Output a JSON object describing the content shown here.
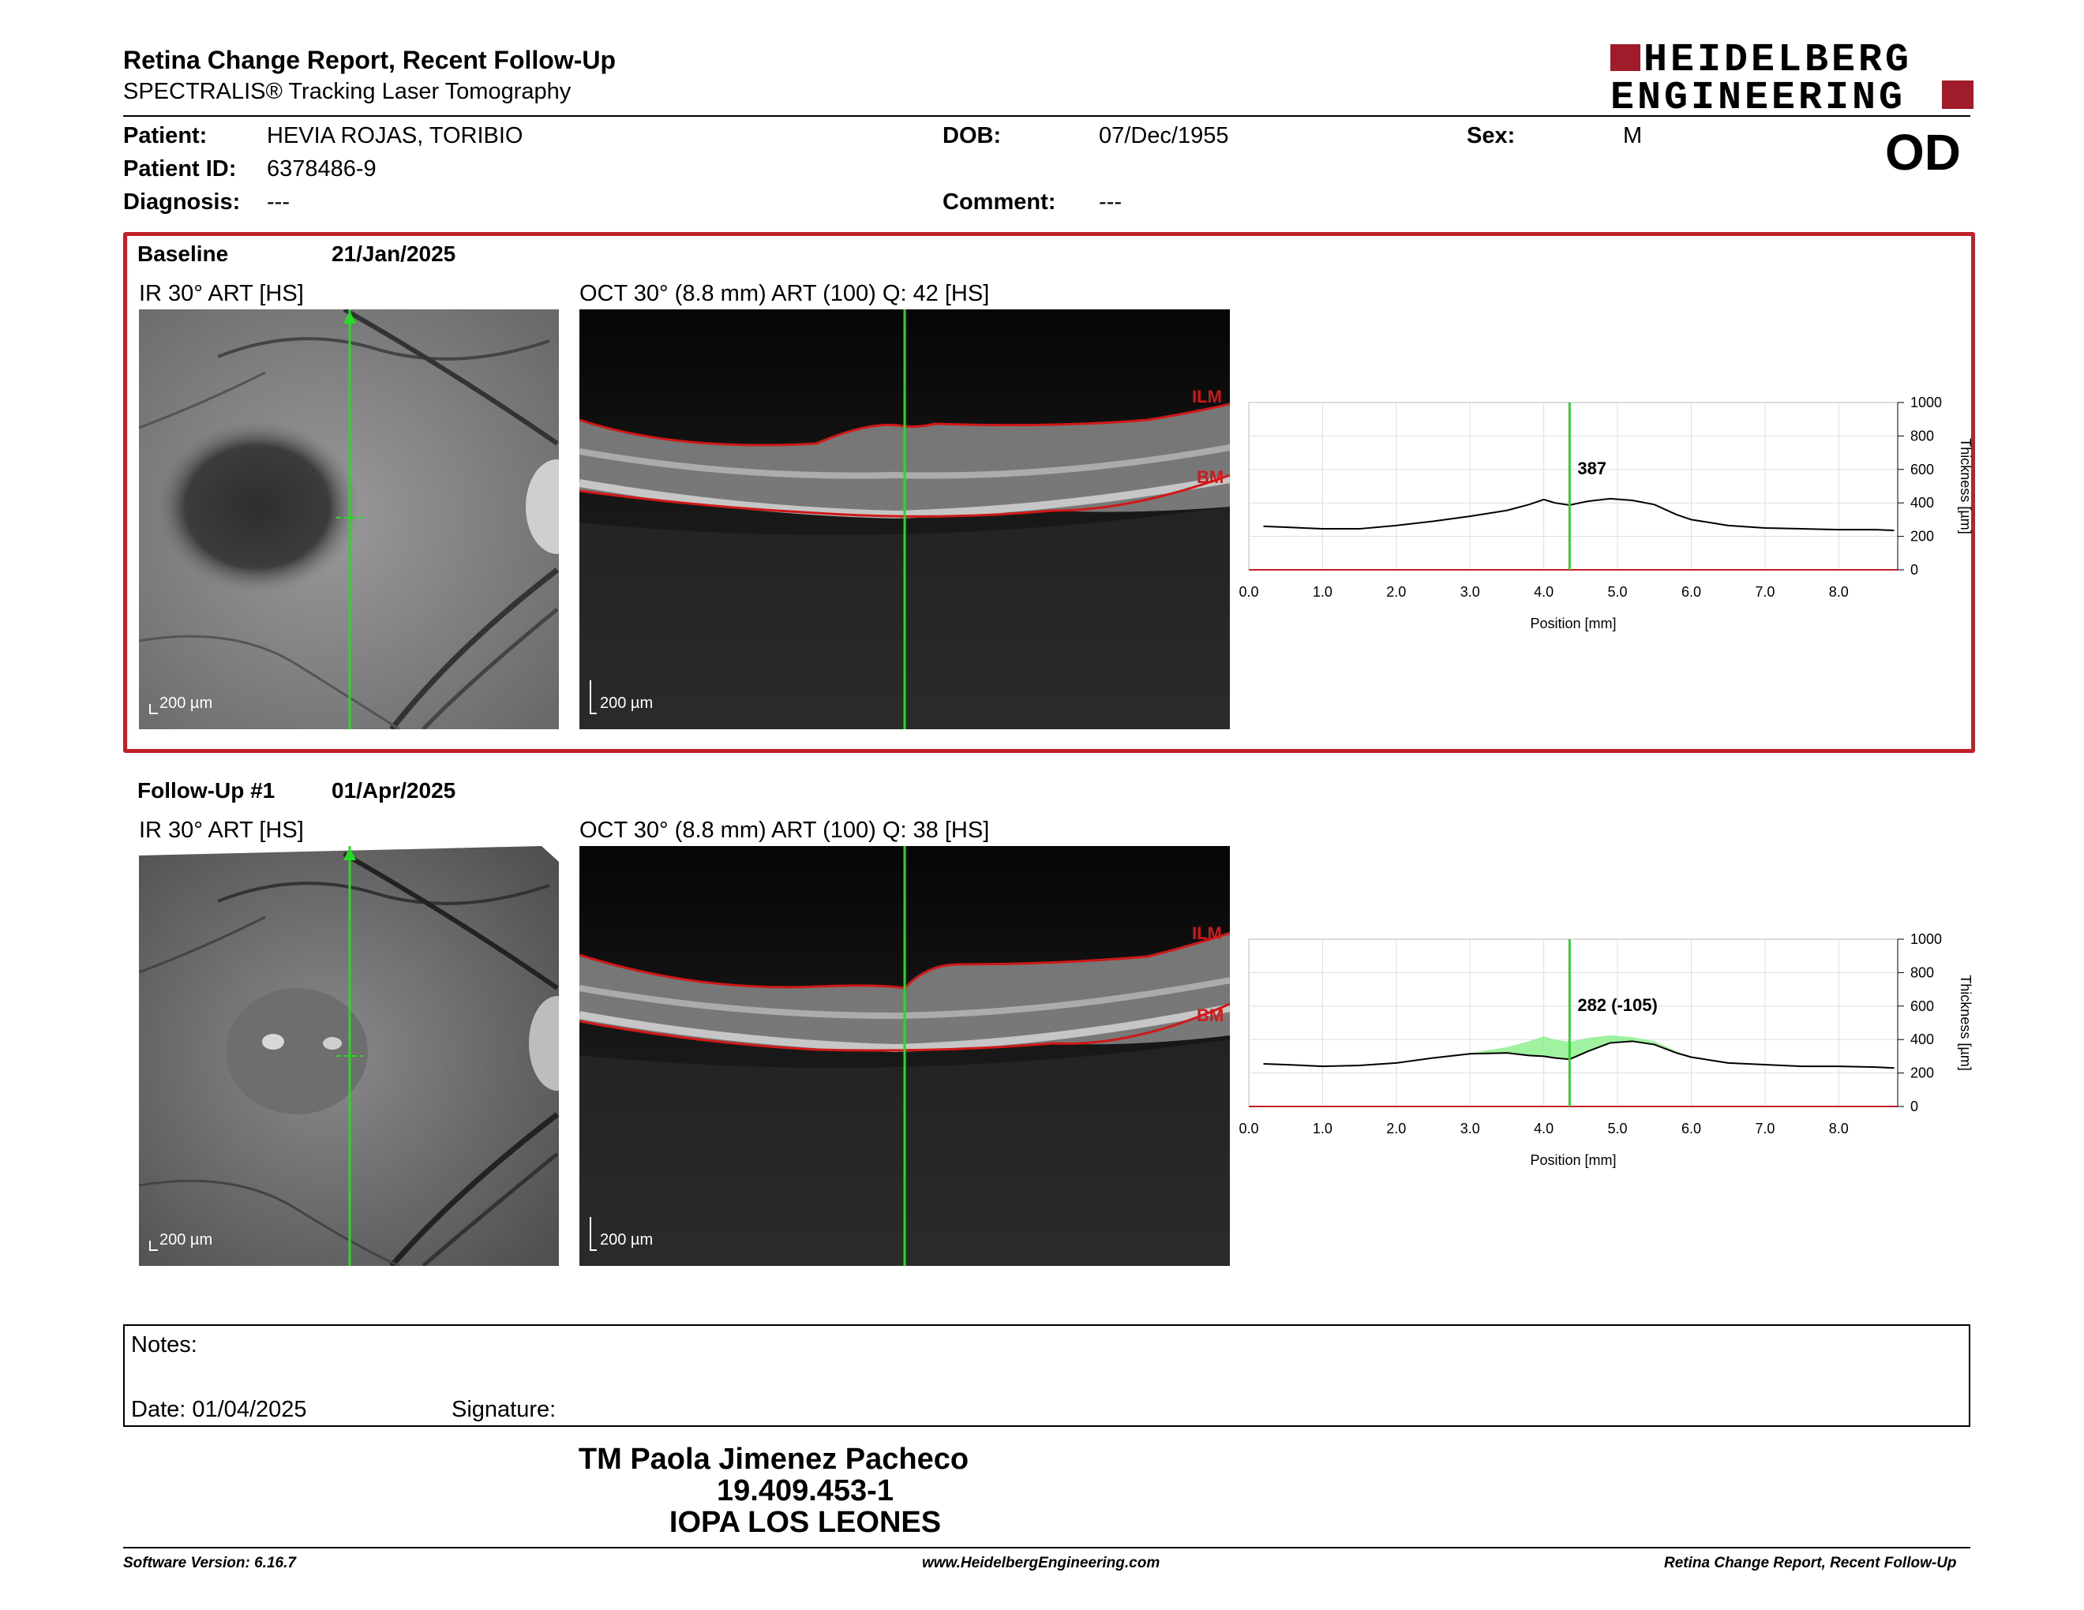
{
  "header": {
    "title": "Retina Change Report, Recent Follow-Up",
    "subtitle": "SPECTRALIS® Tracking Laser Tomography",
    "logo_line1": "HEIDELBERG",
    "logo_line2": "ENGINEERING"
  },
  "patient": {
    "name_label": "Patient:",
    "name": "HEVIA ROJAS, TORIBIO",
    "id_label": "Patient ID:",
    "id": "6378486-9",
    "diagnosis_label": "Diagnosis:",
    "diagnosis": "---",
    "dob_label": "DOB:",
    "dob": "07/Dec/1955",
    "comment_label": "Comment:",
    "comment": "---",
    "sex_label": "Sex:",
    "sex": "M",
    "eye": "OD"
  },
  "baseline": {
    "label": "Baseline",
    "date": "21/Jan/2025",
    "ir_label": "IR 30° ART [HS]",
    "oct_label": "OCT 30° (8.8 mm) ART (100) Q: 42 [HS]",
    "scale": "200 µm",
    "ilm": "ILM",
    "bm": "BM",
    "marker_value": "387"
  },
  "followup": {
    "label": "Follow-Up #1",
    "date": "01/Apr/2025",
    "ir_label": "IR 30° ART [HS]",
    "oct_label": "OCT 30° (8.8 mm) ART (100) Q: 38 [HS]",
    "scale": "200 µm",
    "ilm": "ILM",
    "bm": "BM",
    "marker_value": "282 (-105)"
  },
  "chart_data": [
    {
      "type": "line",
      "xlabel": "Position [mm]",
      "ylabel": "Thickness [µm]",
      "xlim": [
        0,
        8.8
      ],
      "ylim": [
        0,
        1000
      ],
      "x_ticks": [
        "0.0",
        "1.0",
        "2.0",
        "3.0",
        "4.0",
        "5.0",
        "6.0",
        "7.0",
        "8.0"
      ],
      "y_ticks": [
        "0",
        "200",
        "400",
        "600",
        "800",
        "1000"
      ],
      "marker_x": 4.35,
      "marker_label": "387",
      "x": [
        0.2,
        0.5,
        1.0,
        1.5,
        2.0,
        2.5,
        3.0,
        3.5,
        3.8,
        4.0,
        4.15,
        4.35,
        4.6,
        4.9,
        5.2,
        5.5,
        5.8,
        6.0,
        6.5,
        7.0,
        7.5,
        8.0,
        8.5,
        8.75
      ],
      "y": [
        260,
        255,
        245,
        245,
        265,
        290,
        320,
        355,
        390,
        420,
        400,
        387,
        410,
        425,
        415,
        390,
        330,
        300,
        265,
        250,
        245,
        240,
        240,
        235
      ]
    },
    {
      "type": "line",
      "xlabel": "Position [mm]",
      "ylabel": "Thickness [µm]",
      "xlim": [
        0,
        8.8
      ],
      "ylim": [
        0,
        1000
      ],
      "x_ticks": [
        "0.0",
        "1.0",
        "2.0",
        "3.0",
        "4.0",
        "5.0",
        "6.0",
        "7.0",
        "8.0"
      ],
      "y_ticks": [
        "0",
        "200",
        "400",
        "600",
        "800",
        "1000"
      ],
      "marker_x": 4.35,
      "marker_label": "282 (-105)",
      "x": [
        0.2,
        0.5,
        1.0,
        1.5,
        2.0,
        2.5,
        3.0,
        3.5,
        3.8,
        4.0,
        4.15,
        4.35,
        4.6,
        4.9,
        5.2,
        5.5,
        5.8,
        6.0,
        6.5,
        7.0,
        7.5,
        8.0,
        8.5,
        8.75
      ],
      "y": [
        255,
        250,
        240,
        245,
        260,
        290,
        315,
        320,
        305,
        300,
        290,
        282,
        330,
        380,
        390,
        370,
        320,
        295,
        260,
        250,
        240,
        240,
        235,
        230
      ]
    }
  ],
  "notes": {
    "notes_label": "Notes:",
    "date_label": "Date: 01/04/2025",
    "signature_label": "Signature:"
  },
  "footer": {
    "name": "TM Paola Jimenez Pacheco",
    "rut": "19.409.453-1",
    "org": "IOPA LOS LEONES",
    "software": "Software Version: 6.16.7",
    "website": "www.HeidelbergEngineering.com",
    "report": "Retina Change Report, Recent Follow-Up"
  },
  "colors": {
    "accent_red": "#c0202a",
    "scan_green": "#22dd22",
    "diff_green": "#88ee88"
  }
}
